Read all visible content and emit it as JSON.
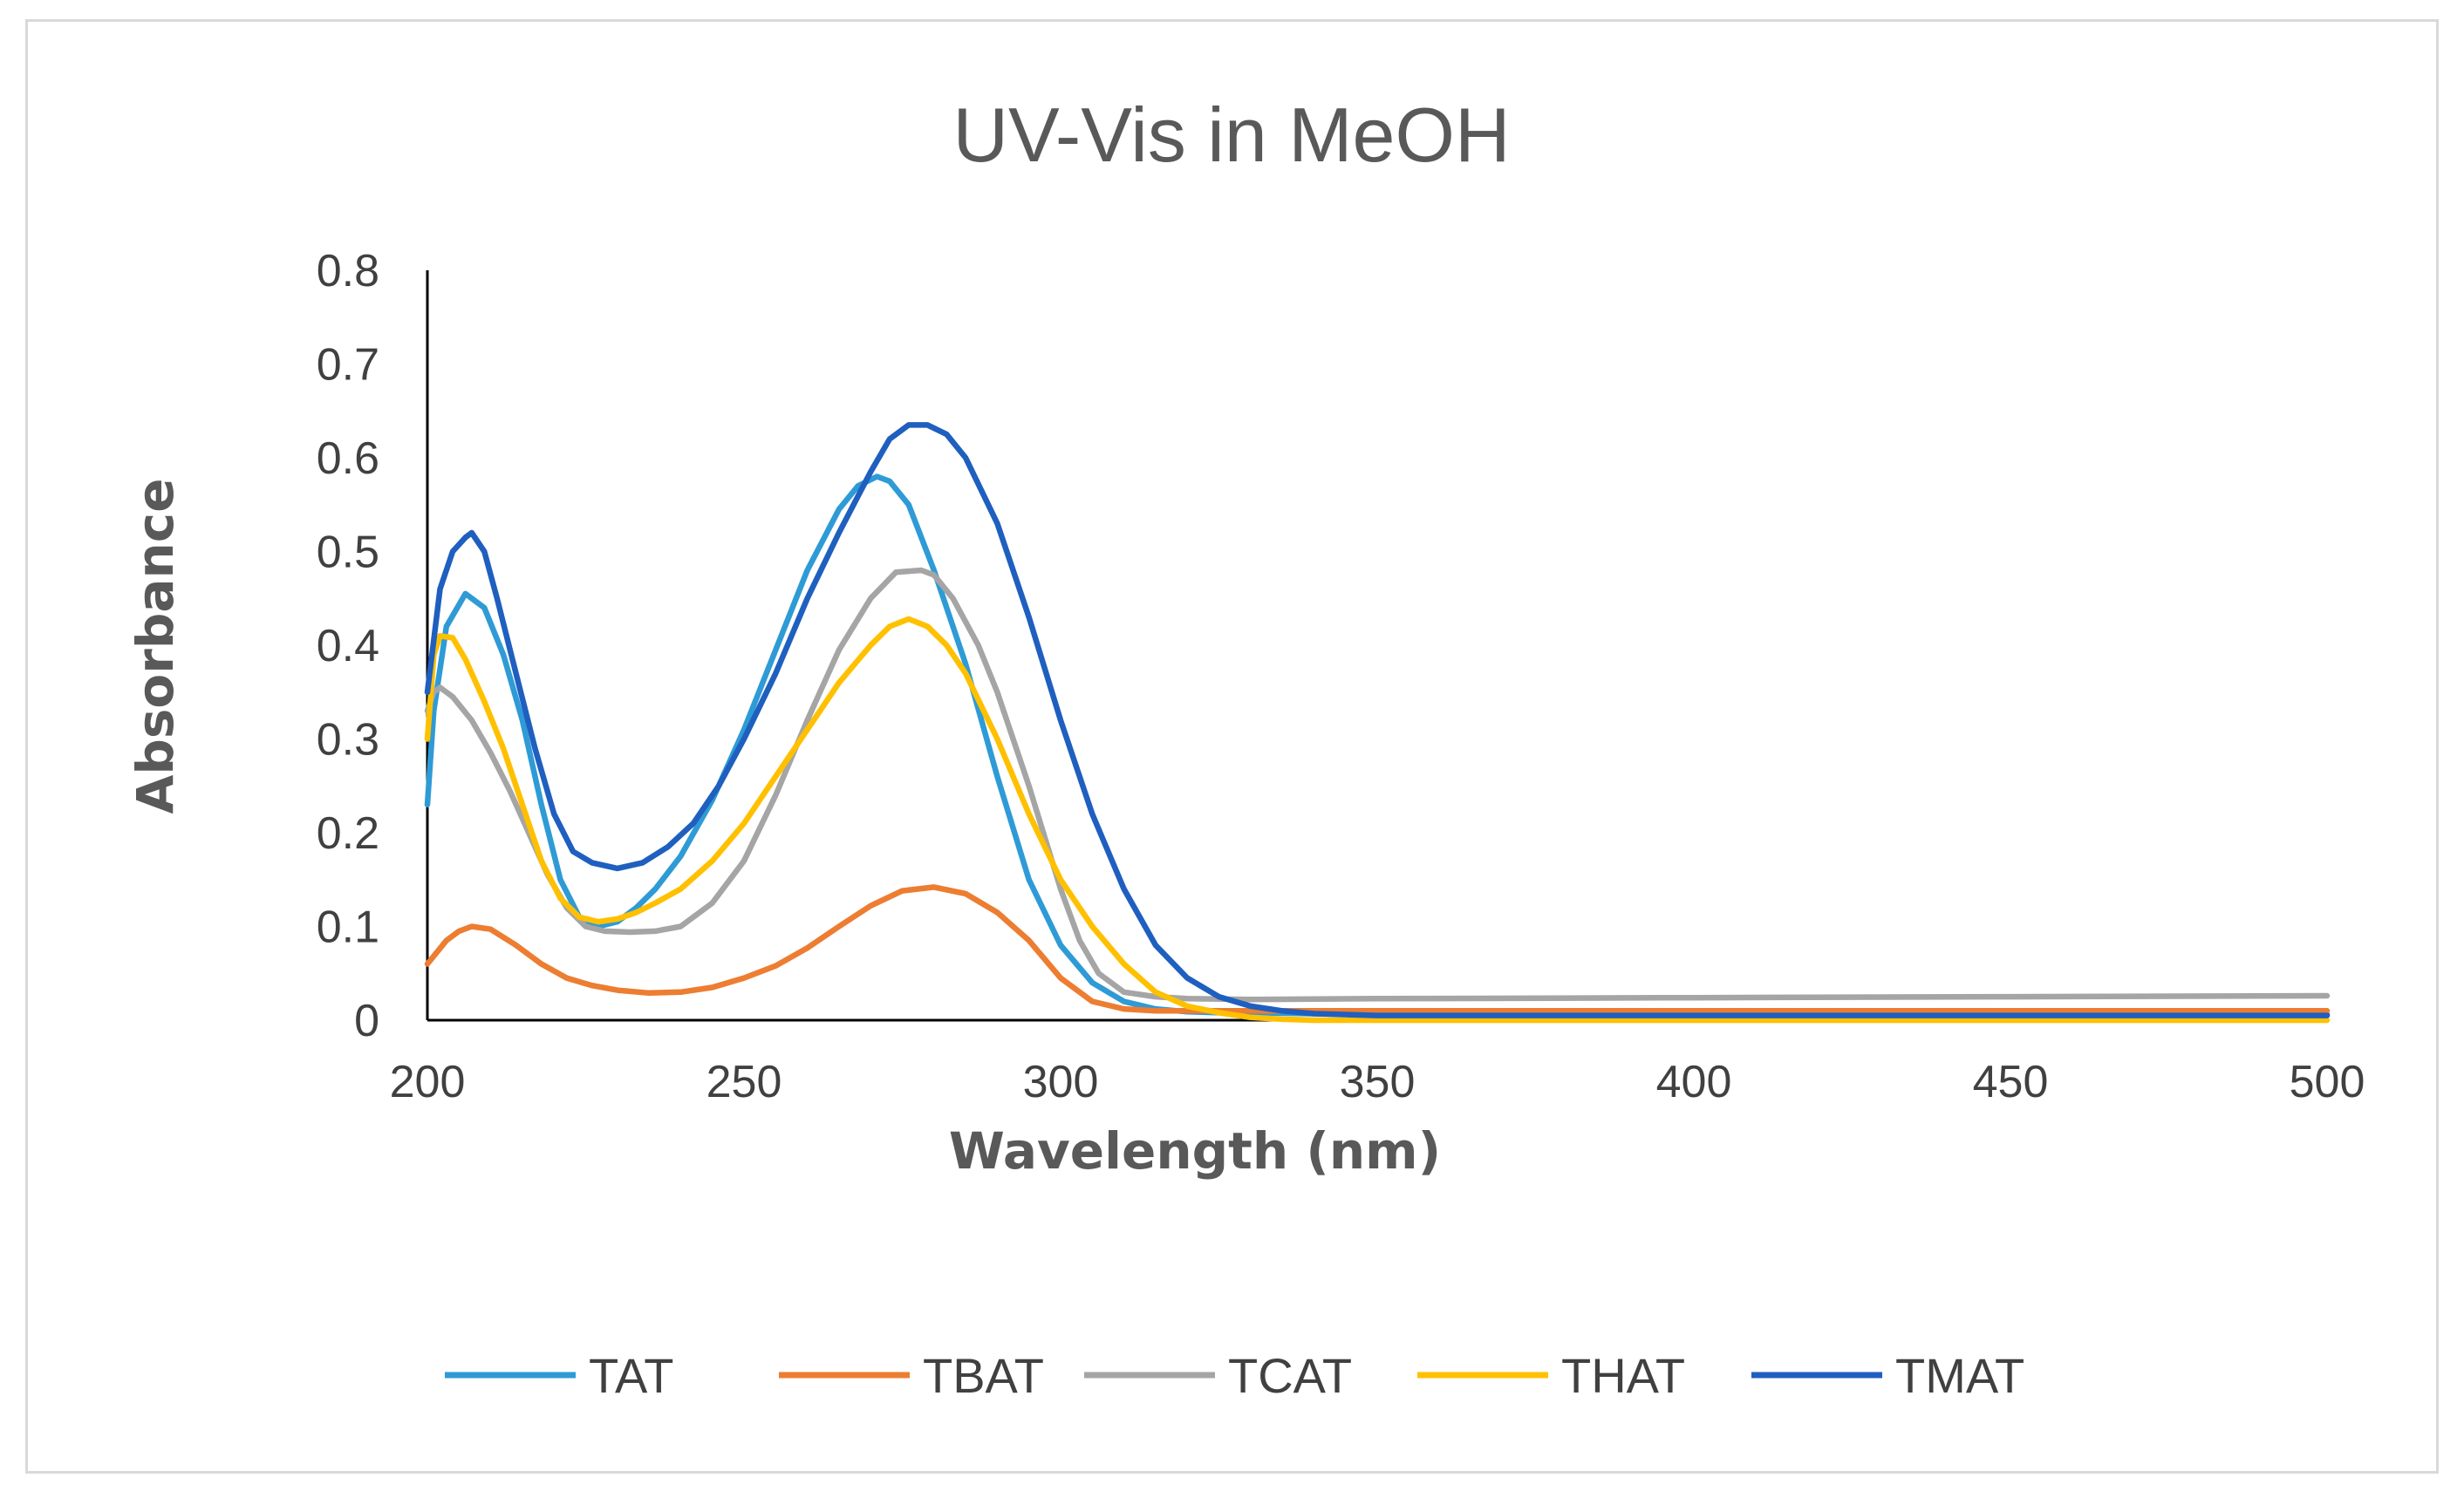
{
  "chart_data": {
    "type": "line",
    "title": "UV-Vis in MeOH",
    "xlabel": "Wavelength (nm)",
    "ylabel": "Absorbance",
    "xlim": [
      200,
      500
    ],
    "ylim": [
      0,
      0.8
    ],
    "xticks": [
      200,
      250,
      300,
      350,
      400,
      450,
      500
    ],
    "yticks": [
      0,
      0.1,
      0.2,
      0.3,
      0.4,
      0.5,
      0.6,
      0.7,
      0.8
    ],
    "ytick_labels": [
      "0",
      "0.1",
      "0.2",
      "0.3",
      "0.4",
      "0.5",
      "0.6",
      "0.7",
      "0.8"
    ],
    "legend_position": "bottom",
    "grid": false,
    "series": [
      {
        "name": "TAT",
        "color": "#2E9BD6",
        "x": [
          200,
          201,
          203,
          206,
          209,
          212,
          215,
          218,
          221,
          224,
          227,
          230,
          233,
          236,
          240,
          245,
          250,
          255,
          260,
          265,
          268,
          271,
          273,
          276,
          280,
          285,
          290,
          295,
          300,
          305,
          310,
          315,
          320,
          325,
          330,
          340,
          350,
          400,
          450,
          500
        ],
        "y": [
          0.23,
          0.33,
          0.42,
          0.455,
          0.44,
          0.39,
          0.32,
          0.23,
          0.15,
          0.11,
          0.1,
          0.105,
          0.12,
          0.14,
          0.175,
          0.235,
          0.31,
          0.395,
          0.48,
          0.545,
          0.57,
          0.58,
          0.575,
          0.55,
          0.48,
          0.38,
          0.26,
          0.15,
          0.08,
          0.04,
          0.02,
          0.012,
          0.009,
          0.008,
          0.008,
          0.007,
          0.006,
          0.006,
          0.006,
          0.006
        ]
      },
      {
        "name": "TBAT",
        "color": "#ED7D31",
        "x": [
          200,
          203,
          205,
          207,
          210,
          214,
          218,
          222,
          226,
          230,
          235,
          240,
          245,
          250,
          255,
          260,
          265,
          270,
          275,
          280,
          285,
          290,
          295,
          300,
          305,
          310,
          315,
          320,
          330,
          350,
          400,
          450,
          500
        ],
        "y": [
          0.06,
          0.085,
          0.095,
          0.1,
          0.097,
          0.08,
          0.06,
          0.045,
          0.037,
          0.032,
          0.029,
          0.03,
          0.035,
          0.045,
          0.058,
          0.077,
          0.1,
          0.122,
          0.138,
          0.142,
          0.135,
          0.115,
          0.085,
          0.045,
          0.02,
          0.012,
          0.01,
          0.01,
          0.01,
          0.01,
          0.01,
          0.01,
          0.01
        ]
      },
      {
        "name": "TCAT",
        "color": "#A5A5A5",
        "x": [
          200,
          201,
          202,
          204,
          207,
          210,
          213,
          216,
          219,
          222,
          225,
          228,
          232,
          236,
          240,
          245,
          250,
          255,
          260,
          265,
          270,
          274,
          278,
          280,
          283,
          287,
          290,
          295,
          300,
          303,
          306,
          310,
          315,
          320,
          330,
          350,
          400,
          450,
          500
        ],
        "y": [
          0.33,
          0.35,
          0.355,
          0.345,
          0.32,
          0.285,
          0.245,
          0.2,
          0.155,
          0.12,
          0.1,
          0.095,
          0.094,
          0.095,
          0.1,
          0.125,
          0.17,
          0.24,
          0.32,
          0.395,
          0.45,
          0.478,
          0.48,
          0.475,
          0.45,
          0.4,
          0.35,
          0.25,
          0.14,
          0.085,
          0.05,
          0.03,
          0.025,
          0.023,
          0.022,
          0.023,
          0.024,
          0.025,
          0.026
        ]
      },
      {
        "name": "THAT",
        "color": "#FFC000",
        "x": [
          200,
          201,
          202,
          204,
          206,
          209,
          212,
          215,
          218,
          221,
          224,
          227,
          230,
          233,
          236,
          240,
          245,
          250,
          255,
          260,
          265,
          270,
          273,
          276,
          279,
          282,
          285,
          290,
          295,
          300,
          305,
          310,
          315,
          320,
          325,
          330,
          335,
          340,
          350,
          400,
          450,
          500
        ],
        "y": [
          0.3,
          0.39,
          0.41,
          0.408,
          0.385,
          0.34,
          0.29,
          0.23,
          0.17,
          0.13,
          0.11,
          0.105,
          0.108,
          0.115,
          0.125,
          0.14,
          0.17,
          0.21,
          0.26,
          0.31,
          0.36,
          0.4,
          0.42,
          0.428,
          0.42,
          0.4,
          0.37,
          0.3,
          0.22,
          0.15,
          0.1,
          0.06,
          0.03,
          0.015,
          0.008,
          0.003,
          0.001,
          0.0,
          0.0,
          0.0,
          0.0,
          0.0
        ]
      },
      {
        "name": "TMAT",
        "color": "#1F5FBF",
        "x": [
          200,
          202,
          204,
          206,
          207,
          209,
          211,
          214,
          217,
          220,
          223,
          226,
          230,
          234,
          238,
          242,
          246,
          250,
          255,
          260,
          265,
          270,
          273,
          276,
          279,
          282,
          285,
          290,
          295,
          300,
          305,
          310,
          315,
          320,
          325,
          330,
          335,
          340,
          350,
          400,
          450,
          500
        ],
        "y": [
          0.35,
          0.46,
          0.5,
          0.515,
          0.52,
          0.5,
          0.45,
          0.37,
          0.29,
          0.22,
          0.18,
          0.168,
          0.162,
          0.168,
          0.185,
          0.21,
          0.25,
          0.3,
          0.37,
          0.45,
          0.52,
          0.585,
          0.62,
          0.635,
          0.635,
          0.625,
          0.6,
          0.53,
          0.43,
          0.32,
          0.22,
          0.14,
          0.08,
          0.045,
          0.025,
          0.015,
          0.01,
          0.007,
          0.005,
          0.005,
          0.005,
          0.005
        ]
      }
    ]
  }
}
